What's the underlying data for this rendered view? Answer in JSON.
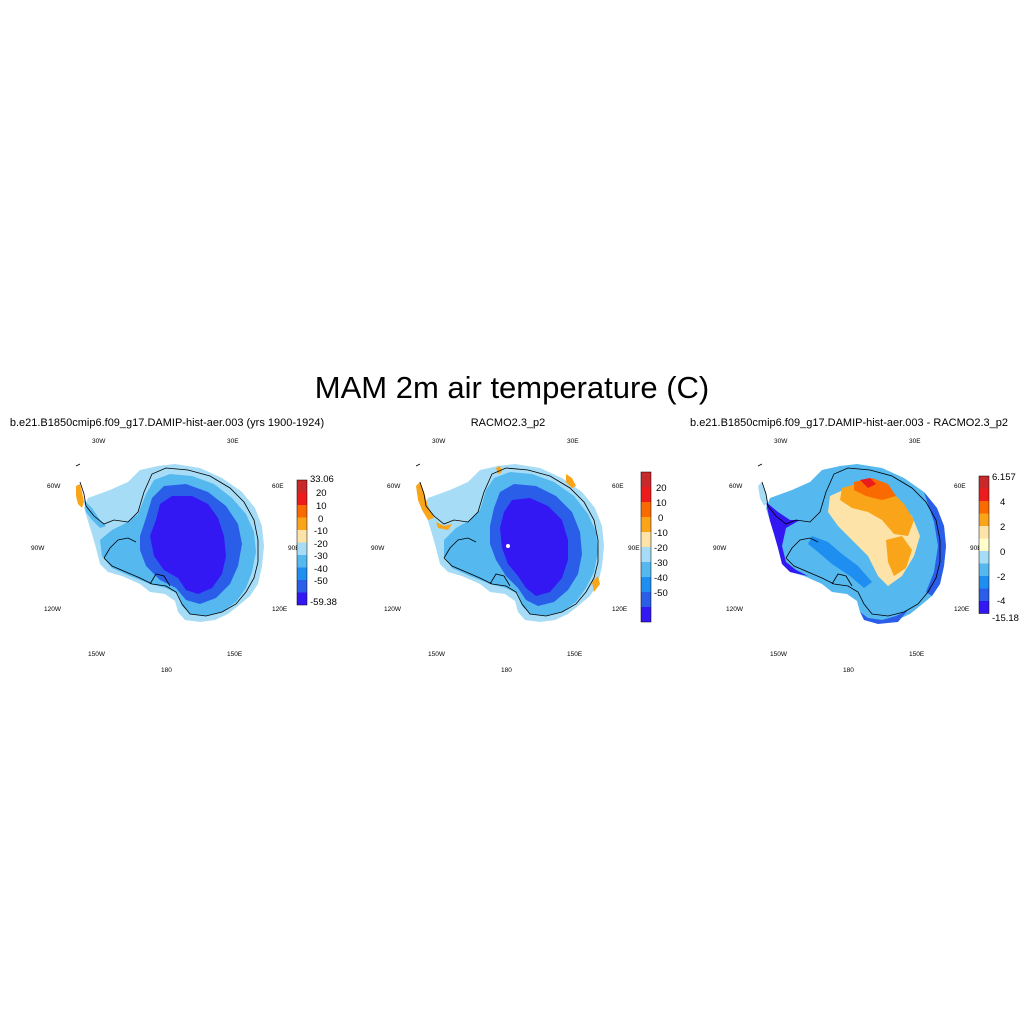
{
  "figure": {
    "title": "MAM 2m air temperature (C)",
    "longitude_labels": [
      "30W",
      "30E",
      "60W",
      "60E",
      "90W",
      "90E",
      "120W",
      "120E",
      "150W",
      "150E",
      "180"
    ]
  },
  "panels": [
    {
      "id": "model",
      "title": "b.e21.B1850cmip6.f09_g17.DAMIP-hist-aer.003 (yrs 1900-1924)",
      "colorbar": {
        "max_label": "33.06",
        "min_label": "-59.38",
        "tick_labels": [
          "20",
          "10",
          "0",
          "-10",
          "-20",
          "-30",
          "-40",
          "-50"
        ],
        "colors": [
          "#c8292a",
          "#ec1c1c",
          "#f96a00",
          "#faa41a",
          "#fde3a7",
          "#a6dcf5",
          "#55b8ef",
          "#1e8ef0",
          "#2a5de8",
          "#3318f4"
        ]
      }
    },
    {
      "id": "obs",
      "title": "RACMO2.3_p2",
      "colorbar": {
        "max_label": "",
        "min_label": "",
        "tick_labels": [
          "20",
          "10",
          "0",
          "-10",
          "-20",
          "-30",
          "-40",
          "-50"
        ],
        "colors": [
          "#c8292a",
          "#ec1c1c",
          "#f96a00",
          "#faa41a",
          "#fde3a7",
          "#a6dcf5",
          "#55b8ef",
          "#1e8ef0",
          "#2a5de8",
          "#3318f4"
        ]
      }
    },
    {
      "id": "diff",
      "title": "b.e21.B1850cmip6.f09_g17.DAMIP-hist-aer.003 - RACMO2.3_p2",
      "colorbar": {
        "max_label": "6.157",
        "min_label": "-15.18",
        "tick_labels": [
          "4",
          "2",
          "0",
          "-2",
          "-4"
        ],
        "colors": [
          "#c8292a",
          "#ec1c1c",
          "#f96a00",
          "#faa41a",
          "#fde3a7",
          "#ffffcc",
          "#a6dcf5",
          "#55b8ef",
          "#1e8ef0",
          "#2a5de8",
          "#3318f4"
        ]
      }
    }
  ]
}
